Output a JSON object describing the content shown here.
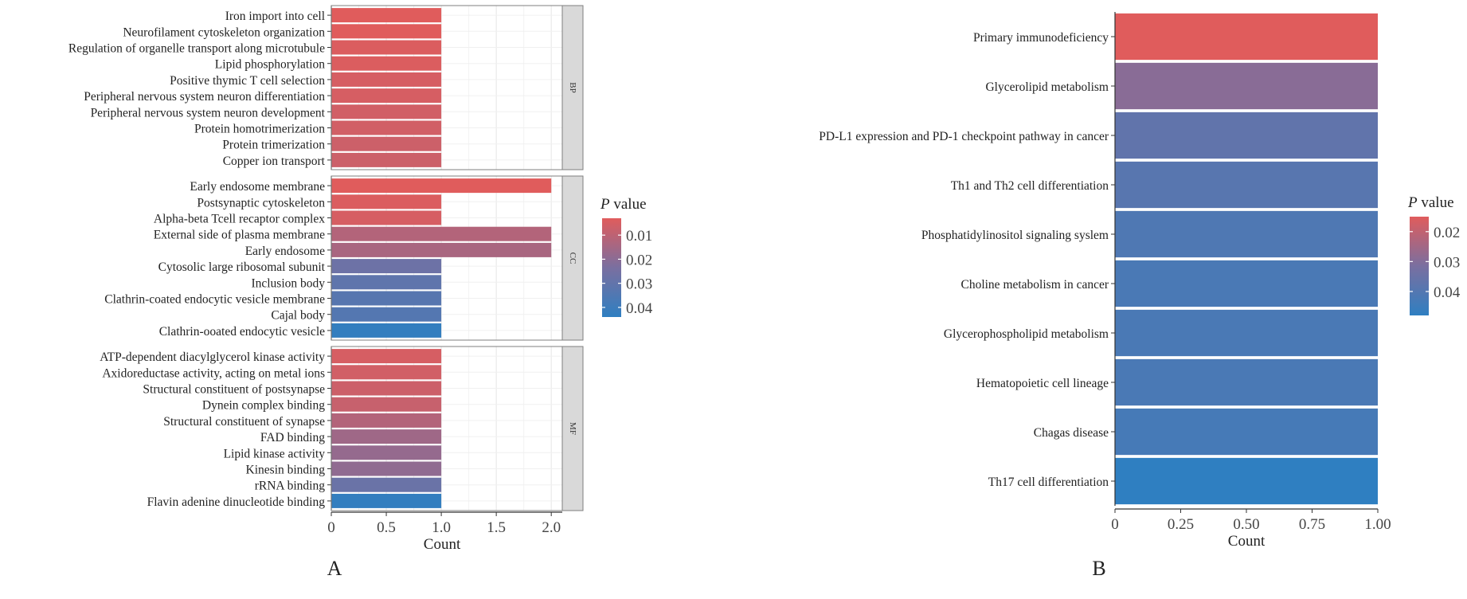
{
  "figure": {
    "panel_a_label": "A",
    "panel_b_label": "B"
  },
  "chart_data": [
    {
      "panel": "A",
      "type": "bar",
      "orientation": "horizontal",
      "facets": [
        {
          "name": "BP",
          "categories": [
            "Iron import into cell",
            "Neurofilament cytoskeleton organization",
            "Regulation of organelle transport along microtubule",
            "Lipid phosphorylation",
            "Positive thymic T cell selection",
            "Peripheral nervous system neuron differentiation",
            "Peripheral nervous system neuron development",
            "Protein homotrimerization",
            "Protein trimerization",
            "Copper ion transport"
          ],
          "values": [
            1,
            1,
            1,
            1,
            1,
            1,
            1,
            1,
            1,
            1
          ],
          "p_values": [
            0.003,
            0.003,
            0.004,
            0.004,
            0.005,
            0.005,
            0.006,
            0.006,
            0.007,
            0.007
          ]
        },
        {
          "name": "CC",
          "categories": [
            "Early endosome membrane",
            "Postsynaptic cytoskeleton",
            "Alpha-beta Tcell recaptor complex",
            "External side of plasma membrane",
            "Early endosome",
            "Cytosolic large ribosomal subunit",
            "Inclusion body",
            "Clathrin-coated endocytic vesicle membrane",
            "Cajal body",
            "Clathrin-ooated endocytic vesicle"
          ],
          "values": [
            2,
            1,
            1,
            2,
            2,
            1,
            1,
            1,
            1,
            1
          ],
          "p_values": [
            0.003,
            0.004,
            0.005,
            0.012,
            0.014,
            0.027,
            0.031,
            0.033,
            0.034,
            0.043
          ]
        },
        {
          "name": "MF",
          "categories": [
            "ATP-dependent diacylglycerol kinase activity",
            "Axidoreductase activity, acting on metal ions",
            "Structural constituent of postsynapse",
            "Dynein complex binding",
            "Structural constituent of synapse",
            "FAD binding",
            "Lipid kinase activity",
            "Kinesin binding",
            "rRNA binding",
            "Flavin adenine dinucleotide binding"
          ],
          "values": [
            1,
            1,
            1,
            1,
            1,
            1,
            1,
            1,
            1,
            1
          ],
          "p_values": [
            0.005,
            0.006,
            0.007,
            0.008,
            0.012,
            0.016,
            0.018,
            0.019,
            0.028,
            0.043
          ]
        }
      ],
      "xlabel": "Count",
      "xlim": [
        0,
        2.1
      ],
      "xticks": [
        "0",
        "0.5",
        "1.0",
        "1.5",
        "2.0"
      ],
      "xtick_values": [
        0,
        0.5,
        1.0,
        1.5,
        2.0
      ],
      "grid": true,
      "legend": {
        "title_italic": "P",
        "title_rest": " value",
        "ticks": [
          "0.01",
          "0.02",
          "0.03",
          "0.04"
        ],
        "tick_values": [
          0.01,
          0.02,
          0.03,
          0.04
        ],
        "range": [
          0.003,
          0.044
        ],
        "placement": "right"
      },
      "colors": {
        "low_p": "#e05c5c",
        "mid_p": "#7a6fa0",
        "high_p": "#2f7fc1"
      }
    },
    {
      "panel": "B",
      "type": "bar",
      "orientation": "horizontal",
      "categories": [
        "Primary immunodeficiency",
        "Glycerolipid metabolism",
        "PD-L1 expression and PD-1 checkpoint pathway in cancer",
        "Th1 and Th2 cell differentiation",
        "Phosphatidylinositol signaling syslem",
        "Choline metabolism in cancer",
        "Glycerophospholipid metabolism",
        "Hematopoietic cell lineage",
        "Chagas disease",
        "Th17 cell differentiation"
      ],
      "values": [
        1,
        1,
        1,
        1,
        1,
        1,
        1,
        1,
        1,
        1
      ],
      "p_values": [
        0.015,
        0.029,
        0.037,
        0.039,
        0.041,
        0.042,
        0.042,
        0.042,
        0.043,
        0.048
      ],
      "xlabel": "Count",
      "xlim": [
        0,
        1.0
      ],
      "xticks": [
        "0",
        "0.25",
        "0.50",
        "0.75",
        "1.00"
      ],
      "xtick_values": [
        0,
        0.25,
        0.5,
        0.75,
        1.0
      ],
      "grid": false,
      "legend": {
        "title_italic": "P",
        "title_rest": " value",
        "ticks": [
          "0.02",
          "0.03",
          "0.04"
        ],
        "tick_values": [
          0.02,
          0.03,
          0.04
        ],
        "range": [
          0.015,
          0.048
        ],
        "placement": "right"
      },
      "colors": {
        "low_p": "#e05c5c",
        "mid_p": "#7a6fa0",
        "high_p": "#2f7fc1"
      }
    }
  ]
}
